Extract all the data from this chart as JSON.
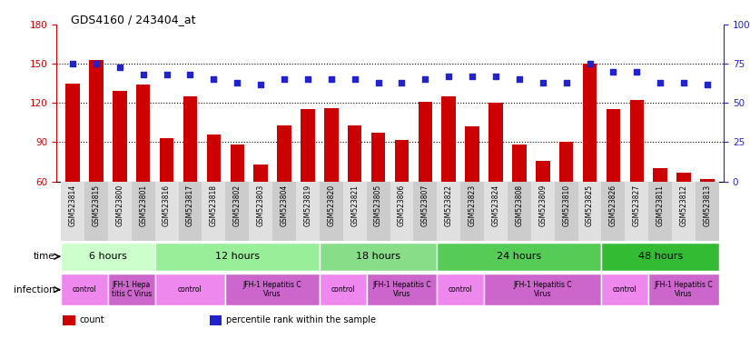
{
  "title": "GDS4160 / 243404_at",
  "samples": [
    "GSM523814",
    "GSM523815",
    "GSM523800",
    "GSM523801",
    "GSM523816",
    "GSM523817",
    "GSM523818",
    "GSM523802",
    "GSM523803",
    "GSM523804",
    "GSM523819",
    "GSM523820",
    "GSM523821",
    "GSM523805",
    "GSM523806",
    "GSM523807",
    "GSM523822",
    "GSM523823",
    "GSM523824",
    "GSM523808",
    "GSM523809",
    "GSM523810",
    "GSM523825",
    "GSM523826",
    "GSM523827",
    "GSM523811",
    "GSM523812",
    "GSM523813"
  ],
  "counts": [
    135,
    153,
    129,
    134,
    93,
    125,
    96,
    88,
    73,
    103,
    115,
    116,
    103,
    97,
    92,
    121,
    125,
    102,
    120,
    88,
    76,
    90,
    150,
    115,
    122,
    70,
    67,
    62
  ],
  "percentiles": [
    75,
    75,
    73,
    68,
    68,
    68,
    65,
    63,
    62,
    65,
    65,
    65,
    65,
    63,
    63,
    65,
    67,
    67,
    67,
    65,
    63,
    63,
    75,
    70,
    70,
    63,
    63,
    62
  ],
  "ylim_left": [
    60,
    180
  ],
  "ylim_right": [
    0,
    100
  ],
  "yticks_left": [
    60,
    90,
    120,
    150,
    180
  ],
  "yticks_right": [
    0,
    25,
    50,
    75,
    100
  ],
  "bar_color": "#cc0000",
  "dot_color": "#2222cc",
  "bg_color": "#ffffff",
  "plot_bg": "#ffffff",
  "time_groups": [
    {
      "label": "6 hours",
      "start": 0,
      "end": 4,
      "color": "#ccffcc"
    },
    {
      "label": "12 hours",
      "start": 4,
      "end": 11,
      "color": "#99ee99"
    },
    {
      "label": "18 hours",
      "start": 11,
      "end": 16,
      "color": "#88dd88"
    },
    {
      "label": "24 hours",
      "start": 16,
      "end": 23,
      "color": "#55cc55"
    },
    {
      "label": "48 hours",
      "start": 23,
      "end": 28,
      "color": "#33bb33"
    }
  ],
  "infection_groups": [
    {
      "label": "control",
      "start": 0,
      "end": 2,
      "color": "#ee88ee"
    },
    {
      "label": "JFH-1 Hepa\ntitis C Virus",
      "start": 2,
      "end": 4,
      "color": "#cc66cc"
    },
    {
      "label": "control",
      "start": 4,
      "end": 7,
      "color": "#ee88ee"
    },
    {
      "label": "JFH-1 Hepatitis C\nVirus",
      "start": 7,
      "end": 11,
      "color": "#cc66cc"
    },
    {
      "label": "control",
      "start": 11,
      "end": 13,
      "color": "#ee88ee"
    },
    {
      "label": "JFH-1 Hepatitis C\nVirus",
      "start": 13,
      "end": 16,
      "color": "#cc66cc"
    },
    {
      "label": "control",
      "start": 16,
      "end": 18,
      "color": "#ee88ee"
    },
    {
      "label": "JFH-1 Hepatitis C\nVirus",
      "start": 18,
      "end": 23,
      "color": "#cc66cc"
    },
    {
      "label": "control",
      "start": 23,
      "end": 25,
      "color": "#ee88ee"
    },
    {
      "label": "JFH-1 Hepatitis C\nVirus",
      "start": 25,
      "end": 28,
      "color": "#cc66cc"
    }
  ]
}
